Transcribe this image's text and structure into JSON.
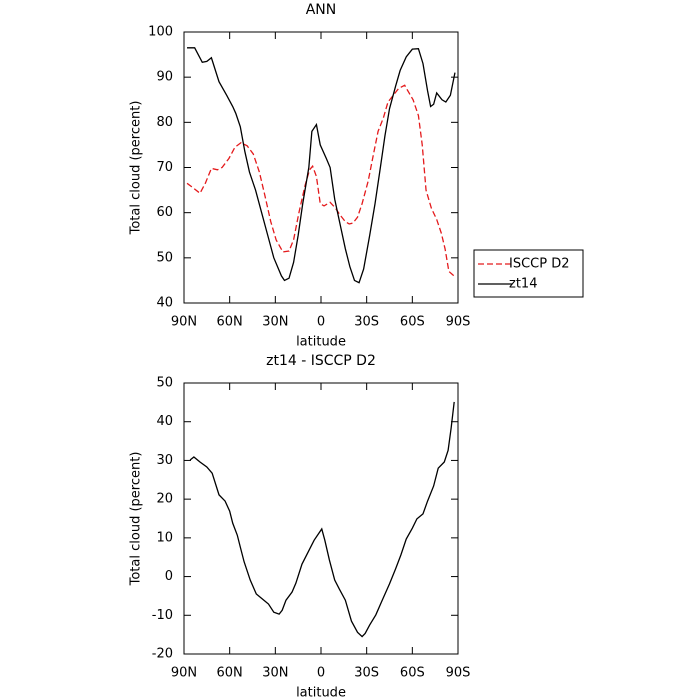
{
  "chart_data": [
    {
      "type": "line",
      "title": "ANN",
      "xlabel": "latitude",
      "ylabel": "Total cloud (percent)",
      "xlim": [
        90,
        -90
      ],
      "ylim": [
        40,
        100
      ],
      "xticks": [
        {
          "value": 90,
          "label": "90N"
        },
        {
          "value": 60,
          "label": "60N"
        },
        {
          "value": 30,
          "label": "30N"
        },
        0,
        {
          "value": -30,
          "label": "30S"
        },
        {
          "value": -60,
          "label": "60S"
        },
        {
          "value": -90,
          "label": "90S"
        }
      ],
      "yticks": [
        40,
        50,
        60,
        70,
        80,
        90,
        100
      ],
      "legend": "right",
      "series": [
        {
          "name": "ISCCP D2",
          "color": "#e41a1c",
          "linestyle": "dashed",
          "x": [
            88,
            84,
            79.5,
            76,
            72,
            68,
            65,
            60.5,
            56.5,
            52.5,
            48.5,
            44.5,
            40.5,
            37,
            33,
            29.5,
            25,
            21,
            18,
            14.5,
            10.5,
            7.5,
            5.5,
            3,
            0.5,
            -2,
            -6,
            -9.5,
            -12.5,
            -16,
            -18.5,
            -21,
            -24,
            -27,
            -31,
            -34.5,
            -37.5,
            -41,
            -44,
            -47.5,
            -51,
            -55,
            -57,
            -60.5,
            -64,
            -66.5,
            -69,
            -72.5,
            -76,
            -79,
            -81.5,
            -84,
            -88
          ],
          "values": [
            66.5,
            65.5,
            64.3,
            66.5,
            69.8,
            69.5,
            70,
            72,
            74.5,
            75.5,
            74.8,
            73,
            69,
            64,
            58,
            54,
            51.3,
            51.5,
            54,
            60,
            66,
            69.5,
            70.3,
            68,
            62,
            61.5,
            62.3,
            61,
            59.5,
            58,
            57.5,
            57.7,
            59,
            62,
            67,
            73,
            78,
            81,
            84.5,
            86,
            87.5,
            88.2,
            87,
            85,
            81.5,
            75,
            65,
            61,
            58.5,
            55.5,
            52,
            47,
            45.8
          ]
        },
        {
          "name": "zt14",
          "color": "#000000",
          "linestyle": "solid",
          "x": [
            88,
            83,
            78,
            75,
            72,
            67,
            62,
            58,
            56,
            53,
            50,
            47,
            43,
            39,
            35,
            31,
            26,
            24,
            21,
            18,
            15,
            12,
            8,
            6,
            3,
            0.5,
            -3.5,
            -6,
            -9,
            -12.5,
            -16,
            -19,
            -22,
            -25,
            -28,
            -32,
            -35.5,
            -39,
            -42,
            -45,
            -49,
            -52,
            -56,
            -60,
            -64,
            -67,
            -70,
            -72,
            -74,
            -76,
            -79.5,
            -82,
            -85,
            -88
          ],
          "values": [
            96.5,
            96.5,
            93.3,
            93.5,
            94.3,
            89,
            86,
            83.5,
            82,
            79,
            73.5,
            69,
            65,
            60,
            55,
            50,
            46,
            45,
            45.5,
            49,
            55,
            62,
            70,
            78,
            79.5,
            75,
            72,
            70,
            63,
            57.5,
            52,
            48,
            45,
            44.5,
            47.5,
            55,
            62,
            70,
            77,
            83,
            88,
            91.5,
            94.5,
            96.2,
            96.3,
            93,
            87,
            83.5,
            84,
            86.5,
            85,
            84.5,
            86,
            91
          ]
        }
      ]
    },
    {
      "type": "line",
      "title": "zt14 - ISCCP D2",
      "xlabel": "latitude",
      "ylabel": "Total cloud (percent)",
      "xlim": [
        90,
        -90
      ],
      "ylim": [
        -20,
        50
      ],
      "xticks": [
        {
          "value": 90,
          "label": "90N"
        },
        {
          "value": 60,
          "label": "60N"
        },
        {
          "value": 30,
          "label": "30N"
        },
        0,
        {
          "value": -30,
          "label": "30S"
        },
        {
          "value": -60,
          "label": "60S"
        },
        {
          "value": -90,
          "label": "90S"
        }
      ],
      "yticks": [
        -20,
        -10,
        0,
        10,
        20,
        30,
        40,
        50
      ],
      "series": [
        {
          "color": "#000000",
          "linestyle": "solid",
          "x": [
            86,
            83.5,
            79.5,
            75,
            71.5,
            67,
            63,
            60,
            58,
            55,
            53,
            50.5,
            46.5,
            42.5,
            38.5,
            34.5,
            31,
            27.5,
            25.5,
            23,
            19,
            16.5,
            12.5,
            8.5,
            4.5,
            -0.5,
            -2.5,
            -5.5,
            -9,
            -12,
            -16,
            -20,
            -24,
            -27,
            -29,
            -32,
            -36,
            -40,
            -45,
            -49,
            -52.5,
            -56,
            -60,
            -63,
            -67,
            -70,
            -74,
            -77,
            -81,
            -83.5,
            -85.5,
            -87.5
          ],
          "values": [
            30.1,
            30.9,
            29.6,
            28.3,
            26.7,
            21.1,
            19.5,
            16.9,
            13.8,
            10.7,
            7.6,
            3.8,
            -0.9,
            -4.5,
            -5.8,
            -7.1,
            -9.2,
            -9.7,
            -8.7,
            -6.1,
            -4,
            -1.7,
            3.2,
            6.3,
            9.4,
            12.3,
            9.4,
            4.3,
            -0.9,
            -3.2,
            -6.1,
            -11.5,
            -14.4,
            -15.5,
            -14.7,
            -12.5,
            -9.9,
            -6.3,
            -1.9,
            2,
            5.6,
            9.7,
            12.5,
            14.9,
            16.2,
            19.5,
            23.4,
            28,
            29.6,
            32.6,
            38.4,
            45.1
          ]
        }
      ]
    }
  ]
}
